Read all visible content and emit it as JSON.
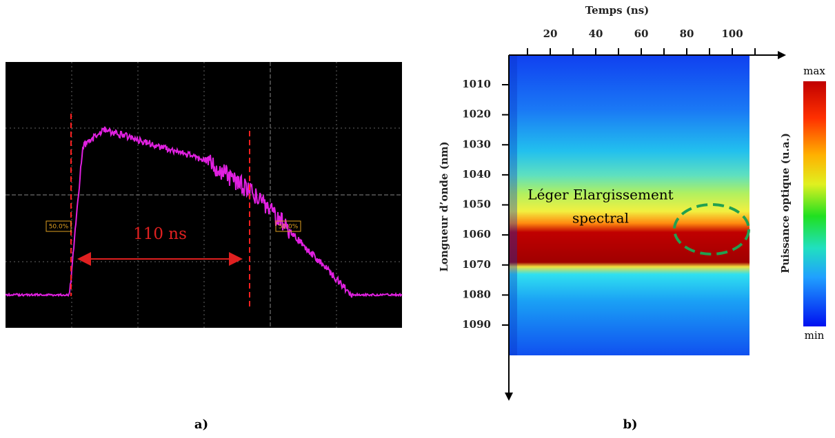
{
  "panel_a": {
    "label": "a)",
    "annotation": "110 ns",
    "marker_left": "50.0%",
    "marker_right": "50.0%"
  },
  "panel_b": {
    "label": "b)",
    "x_axis_title": "Temps (ns)",
    "x_ticks": [
      20,
      40,
      60,
      80,
      100
    ],
    "y_axis_title": "Longueur d’onde (nm)",
    "y_ticks": [
      1010,
      1020,
      1030,
      1040,
      1050,
      1060,
      1070,
      1080,
      1090
    ],
    "annotation": [
      "Léger Elargissement",
      "spectral"
    ],
    "colorbar_title": "Puissance optique (u.a.)",
    "colorbar_max": "max",
    "colorbar_min": "min"
  }
}
